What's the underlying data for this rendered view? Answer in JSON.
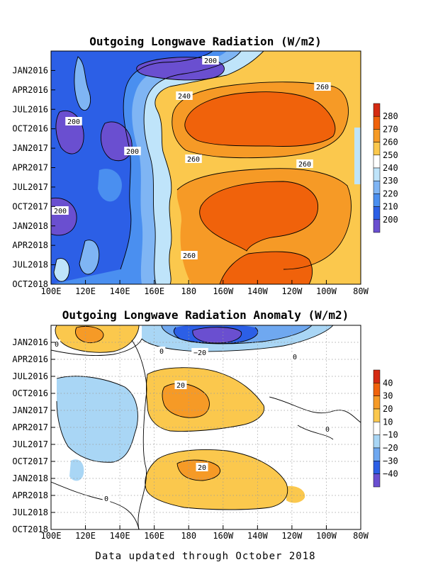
{
  "chart_data": [
    {
      "type": "heatmap",
      "title": "Outgoing Longwave Radiation (W/m2)",
      "x_tick_labels": [
        "100E",
        "120E",
        "140E",
        "160E",
        "180",
        "160W",
        "140W",
        "120W",
        "100W",
        "80W"
      ],
      "y_tick_labels": [
        "JAN2016",
        "APR2016",
        "JUL2016",
        "OCT2016",
        "JAN2017",
        "APR2017",
        "JUL2017",
        "OCT2017",
        "JAN2018",
        "APR2018",
        "JUL2018",
        "OCT2018"
      ],
      "xlim": [
        "100E",
        "80W"
      ],
      "ylim": [
        "OCT2015",
        "OCT2018"
      ],
      "y_direction": "time increases downward",
      "grid": false,
      "legend": "colorbar right",
      "colorbar": {
        "labels": [
          "200",
          "210",
          "220",
          "230",
          "240",
          "250",
          "260",
          "270",
          "280"
        ],
        "colors": [
          "#6a4fd0",
          "#2c5fe6",
          "#4a8ff0",
          "#7fb5f4",
          "#bfe4fa",
          "#ffffff",
          "#fbc84d",
          "#f69a26",
          "#f0620b",
          "#d42b12"
        ]
      },
      "contour_labels": [
        {
          "text": "200"
        },
        {
          "text": "240"
        },
        {
          "text": "260"
        },
        {
          "text": "200"
        },
        {
          "text": "200"
        },
        {
          "text": "260"
        },
        {
          "text": "260"
        },
        {
          "text": "200"
        },
        {
          "text": "260"
        }
      ]
    },
    {
      "type": "heatmap",
      "title": "Outgoing Longwave Radiation Anomaly (W/m2)",
      "x_tick_labels": [
        "100E",
        "120E",
        "140E",
        "160E",
        "180",
        "160W",
        "140W",
        "120W",
        "100W",
        "80W"
      ],
      "y_tick_labels": [
        "JAN2016",
        "APR2016",
        "JUL2016",
        "OCT2016",
        "JAN2017",
        "APR2017",
        "JUL2017",
        "OCT2017",
        "JAN2018",
        "APR2018",
        "JUL2018",
        "OCT2018"
      ],
      "xlim": [
        "100E",
        "80W"
      ],
      "ylim": [
        "OCT2015",
        "OCT2018"
      ],
      "y_direction": "time increases downward",
      "grid": true,
      "legend": "colorbar right",
      "colorbar": {
        "labels": [
          "40",
          "30",
          "20",
          "10",
          "−10",
          "−20",
          "−30",
          "−40"
        ],
        "colors": [
          "#d42b12",
          "#f0620b",
          "#f69a26",
          "#fbc84d",
          "#ffffff",
          "#a9d6f5",
          "#6fa8f0",
          "#2c5fe6",
          "#6a4fd0"
        ]
      },
      "contour_labels": [
        {
          "text": "0"
        },
        {
          "text": "0"
        },
        {
          "text": "−20"
        },
        {
          "text": "0"
        },
        {
          "text": "20"
        },
        {
          "text": "0"
        },
        {
          "text": "20"
        },
        {
          "text": "0"
        }
      ]
    }
  ],
  "footer": "Data updated through October 2018"
}
